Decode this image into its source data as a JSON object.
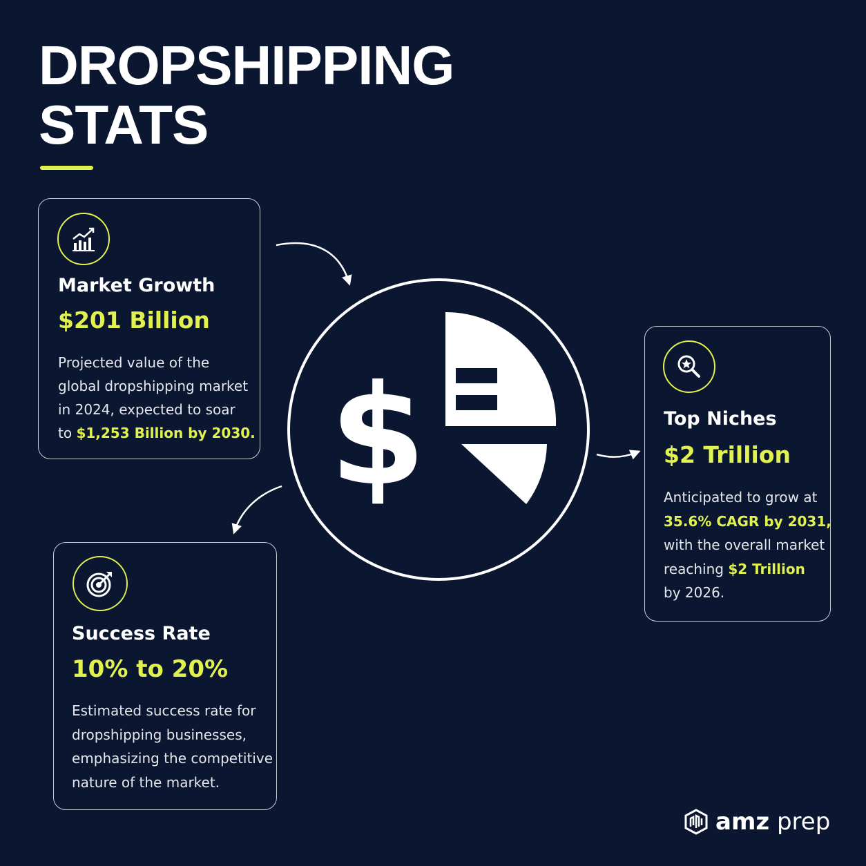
{
  "title": {
    "line1": "DROPSHIPPING",
    "line2": "STATS"
  },
  "colors": {
    "background": "#0b1730",
    "accent": "#e1f24f",
    "text": "#ffffff",
    "border": "#c9cdd6"
  },
  "cards": {
    "market_growth": {
      "icon": "growth-chart-icon",
      "title": "Market Growth",
      "value": "$201 Billion",
      "desc_line1": "Projected value of the",
      "desc_line2": "global dropshipping market",
      "desc_line3": "in 2024, expected to soar",
      "desc_line4_prefix": "to ",
      "desc_line4_highlight": "$1,253 Billion by 2030."
    },
    "top_niches": {
      "icon": "magnifier-star-icon",
      "title": "Top Niches",
      "value": "$2 Trillion",
      "desc_line1": "Anticipated to grow at",
      "desc_line2_highlight": "35.6% CAGR by 2031,",
      "desc_line3": "with the overall market",
      "desc_line4_prefix": "reaching ",
      "desc_line4_highlight": "$2 Trillion",
      "desc_line5": "by 2026."
    },
    "success_rate": {
      "icon": "target-arrow-icon",
      "title": "Success Rate",
      "value": "10% to 20%",
      "desc_line1": "Estimated success rate for",
      "desc_line2": "dropshipping businesses,",
      "desc_line3": "emphasizing the competitive",
      "desc_line4": "nature of the market."
    }
  },
  "center_graphic": {
    "icon": "dollar-pie-icon",
    "symbol": "$"
  },
  "logo": {
    "icon": "amz-prep-logo-icon",
    "brand_bold": "amz",
    "brand_light": " prep"
  }
}
